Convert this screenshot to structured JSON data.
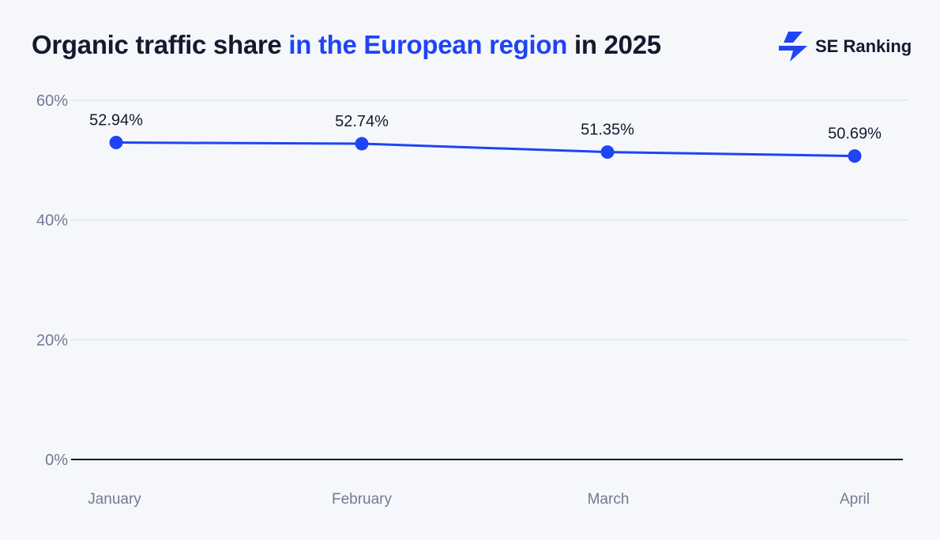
{
  "header": {
    "title_part1": "Organic traffic share ",
    "title_part2": "in the European region",
    "title_part3": " in 2025",
    "brand_name": "SE Ranking",
    "brand_icon": "lightning-bolt-logo"
  },
  "colors": {
    "accent": "#1f44f5",
    "text": "#141a2e",
    "axis_text": "#717a93",
    "grid": "#dde1ee",
    "background": "#f6f7fb"
  },
  "chart_data": {
    "type": "line",
    "categories": [
      "January",
      "February",
      "March",
      "April"
    ],
    "series": [
      {
        "values": [
          52.94,
          52.74,
          51.35,
          50.69
        ]
      }
    ],
    "data_labels": [
      "52.94%",
      "52.74%",
      "51.35%",
      "50.69%"
    ],
    "yticks": [
      "0%",
      "20%",
      "40%",
      "60%"
    ],
    "ylim": [
      0,
      60
    ],
    "grid": true,
    "legend": "none"
  }
}
